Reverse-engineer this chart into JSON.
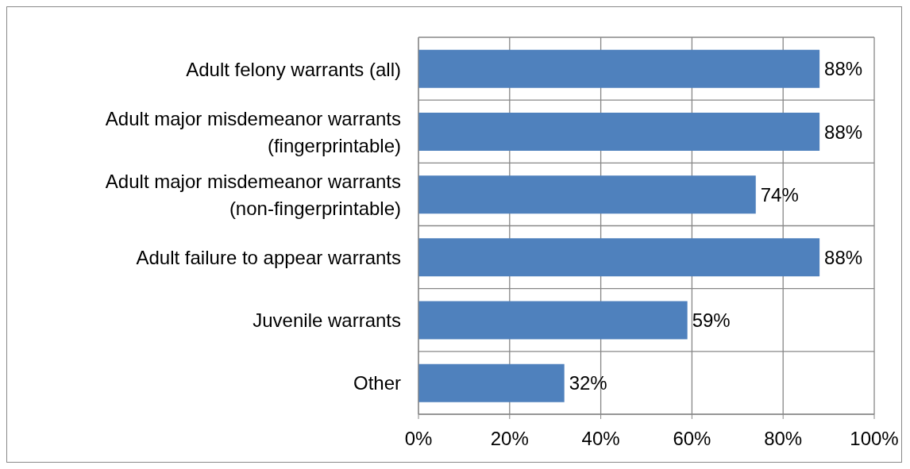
{
  "chart_data": {
    "type": "bar",
    "orientation": "horizontal",
    "categories": [
      "Adult felony warrants (all)",
      "Adult major misdemeanor warrants (fingerprintable)",
      "Adult major misdemeanor warrants (non-fingerprintable)",
      "Adult failure to appear warrants",
      "Juvenile warrants",
      "Other"
    ],
    "values": [
      88,
      88,
      74,
      88,
      59,
      32
    ],
    "value_labels": [
      "88%",
      "88%",
      "74%",
      "88%",
      "59%",
      "32%"
    ],
    "color": "#4f81bd",
    "xlim": [
      0,
      100
    ],
    "xticks": [
      {
        "value": 0,
        "label": "0%"
      },
      {
        "value": 20,
        "label": "20%"
      },
      {
        "value": 40,
        "label": "40%"
      },
      {
        "value": 60,
        "label": "60%"
      },
      {
        "value": 80,
        "label": "80%"
      },
      {
        "value": 100,
        "label": "100%"
      }
    ],
    "grid": true
  }
}
